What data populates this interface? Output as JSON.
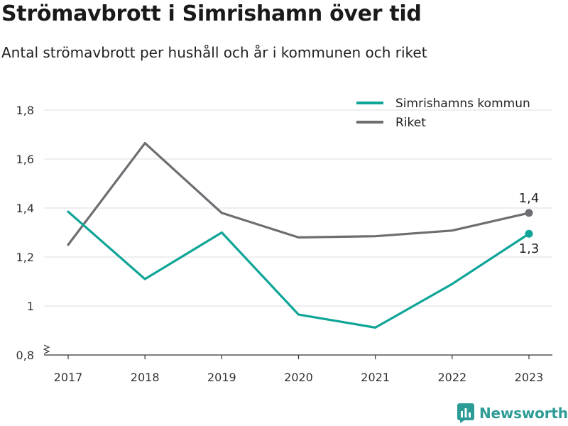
{
  "title": "Strömavbrott i Simrishamn över tid",
  "subtitle": "Antal strömavbrott per hushåll och år i kommunen och riket",
  "brand": "Newsworthy",
  "colors": {
    "kommun": "#0ea597",
    "riket": "#6d6d72",
    "grid": "#dddddd",
    "axis": "#333333",
    "brand": "#2e9c96"
  },
  "chart_data": {
    "type": "line",
    "x": [
      "2017",
      "2018",
      "2019",
      "2020",
      "2021",
      "2022",
      "2023"
    ],
    "series": [
      {
        "name": "Simrishamns kommun",
        "values": [
          1.385,
          1.11,
          1.3,
          0.965,
          0.912,
          1.09,
          1.295
        ],
        "end_label": "1,3"
      },
      {
        "name": "Riket",
        "values": [
          1.25,
          1.665,
          1.38,
          1.28,
          1.285,
          1.308,
          1.38
        ],
        "end_label": "1,4"
      }
    ],
    "ylim": [
      0.8,
      1.8
    ],
    "yticks": [
      0.8,
      1,
      1.2,
      1.4,
      1.6,
      1.8
    ],
    "ytick_labels": [
      "0,8",
      "1",
      "1,2",
      "1,4",
      "1,6",
      "1,8"
    ],
    "y_axis_break": true,
    "grid": true,
    "legend": "top-right",
    "xlabel": "",
    "ylabel": ""
  }
}
